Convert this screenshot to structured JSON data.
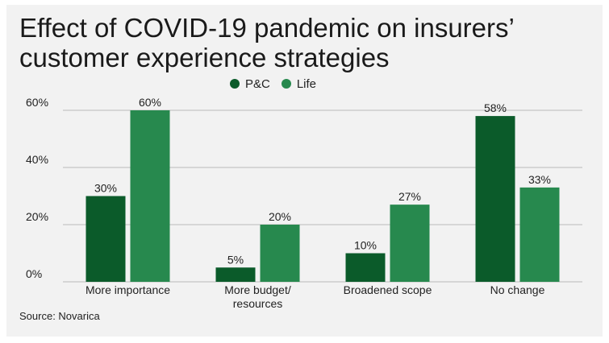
{
  "title_line1": "Effect of COVID-19 pandemic on insurers’",
  "title_line2": "customer experience strategies",
  "source": "Source: Novarica",
  "colors": {
    "pc": "#0b5b2a",
    "life": "#27894e",
    "grid": "#b9b9b9",
    "background": "#f2f2f2"
  },
  "chart_data": {
    "type": "bar",
    "categories": [
      [
        "More importance"
      ],
      [
        "More budget/",
        "resources"
      ],
      [
        "Broadened scope"
      ],
      [
        "No change"
      ]
    ],
    "series": [
      {
        "name": "P&C",
        "values": [
          30,
          5,
          10,
          58
        ],
        "labels": [
          "30%",
          "5%",
          "10%",
          "58%"
        ],
        "color": "#0b5b2a"
      },
      {
        "name": "Life",
        "values": [
          60,
          20,
          27,
          33
        ],
        "labels": [
          "60%",
          "20%",
          "27%",
          "33%"
        ],
        "color": "#27894e"
      }
    ],
    "yticks": [
      0,
      20,
      40,
      60
    ],
    "ytick_labels": [
      "0%",
      "20%",
      "40%",
      "60%"
    ],
    "ylim": [
      0,
      60
    ],
    "grid": true,
    "legend": "top-center"
  }
}
